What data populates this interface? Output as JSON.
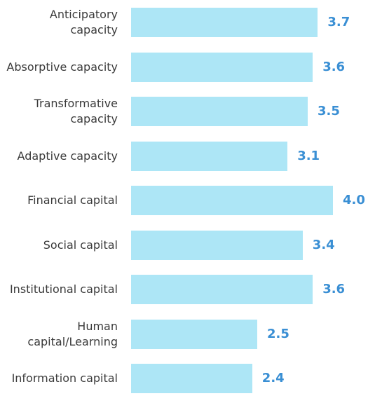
{
  "chart_data": {
    "type": "bar",
    "orientation": "horizontal",
    "categories": [
      "Anticipatory capacity",
      "Absorptive capacity",
      "Transformative capacity",
      "Adaptive capacity",
      "Financial capital",
      "Social capital",
      "Institutional capital",
      "Human capital/Learning",
      "Information capital"
    ],
    "values": [
      3.7,
      3.6,
      3.5,
      3.1,
      4.0,
      3.4,
      3.6,
      2.5,
      2.4
    ],
    "value_labels": [
      "3.7",
      "3.6",
      "3.5",
      "3.1",
      "4.0",
      "3.4",
      "3.6",
      "2.5",
      "2.4"
    ],
    "color": "#ade6f6",
    "xlim": [
      0,
      4
    ]
  }
}
